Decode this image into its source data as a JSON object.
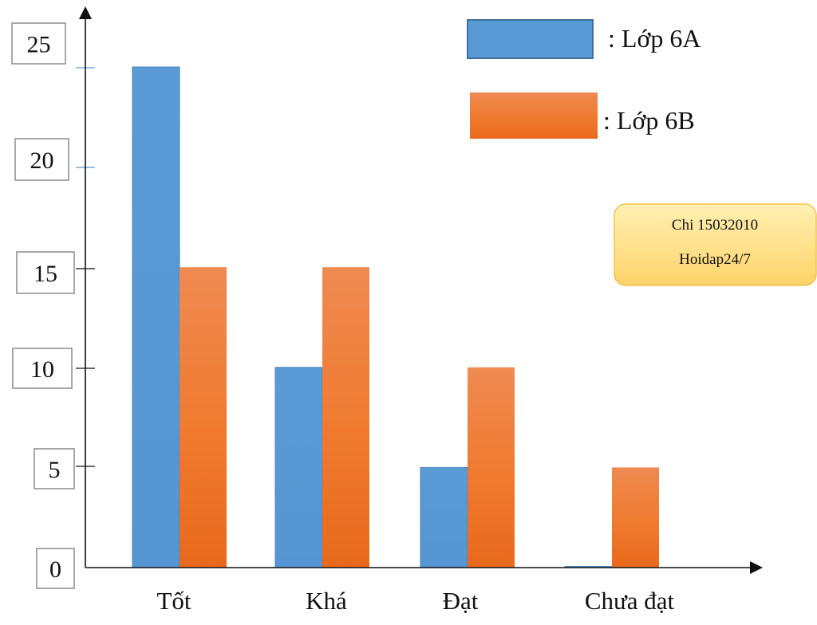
{
  "chart_data": {
    "type": "bar",
    "categories": [
      "Tốt",
      "Khá",
      "Đạt",
      "Chưa đạt"
    ],
    "series": [
      {
        "name": ": Lớp 6A",
        "values": [
          25,
          10,
          5,
          0
        ],
        "color": "#5b9bd5"
      },
      {
        "name": ": Lớp 6B",
        "values": [
          15,
          15,
          10,
          5
        ],
        "color": "#ed7d31"
      }
    ],
    "yticks": [
      0,
      5,
      10,
      15,
      20,
      25
    ],
    "ylim": [
      0,
      25
    ],
    "grid": false,
    "legend_position": "top-right"
  },
  "note": {
    "line1": "Chi 15032010",
    "line2": "Hoidap24/7",
    "color": "#ffe08a"
  }
}
